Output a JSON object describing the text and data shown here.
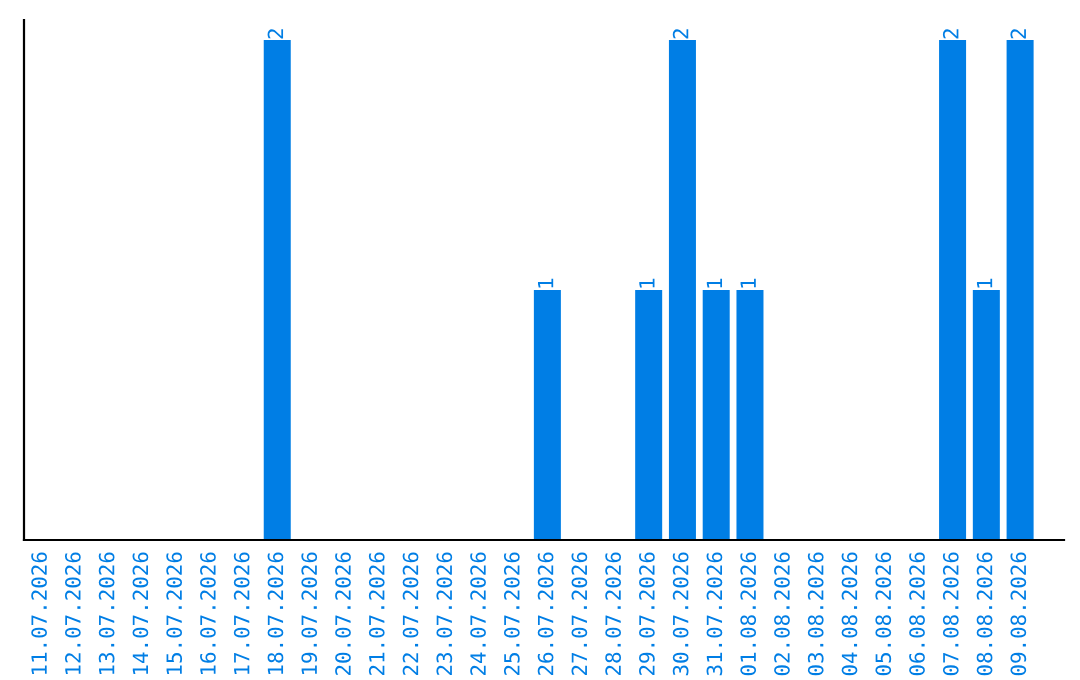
{
  "chart_data": {
    "type": "bar",
    "categories": [
      "11.07.2026",
      "12.07.2026",
      "13.07.2026",
      "14.07.2026",
      "15.07.2026",
      "16.07.2026",
      "17.07.2026",
      "18.07.2026",
      "19.07.2026",
      "20.07.2026",
      "21.07.2026",
      "22.07.2026",
      "23.07.2026",
      "24.07.2026",
      "25.07.2026",
      "26.07.2026",
      "27.07.2026",
      "28.07.2026",
      "29.07.2026",
      "30.07.2026",
      "31.07.2026",
      "01.08.2026",
      "02.08.2026",
      "03.08.2026",
      "04.08.2026",
      "05.08.2026",
      "06.08.2026",
      "07.08.2026",
      "08.08.2026",
      "09.08.2026"
    ],
    "values": [
      0,
      0,
      0,
      0,
      0,
      0,
      0,
      2,
      0,
      0,
      0,
      0,
      0,
      0,
      0,
      1,
      0,
      0,
      1,
      2,
      1,
      1,
      0,
      0,
      0,
      0,
      0,
      2,
      1,
      2
    ],
    "value_labels": [
      null,
      null,
      null,
      null,
      null,
      null,
      null,
      "2",
      null,
      null,
      null,
      null,
      null,
      null,
      null,
      "1",
      null,
      null,
      "1",
      "2",
      "1",
      "1",
      null,
      null,
      null,
      null,
      null,
      "2",
      "1",
      "2"
    ],
    "color": "#007ee5",
    "tick_labels": "x",
    "grid": false,
    "legend": false
  }
}
